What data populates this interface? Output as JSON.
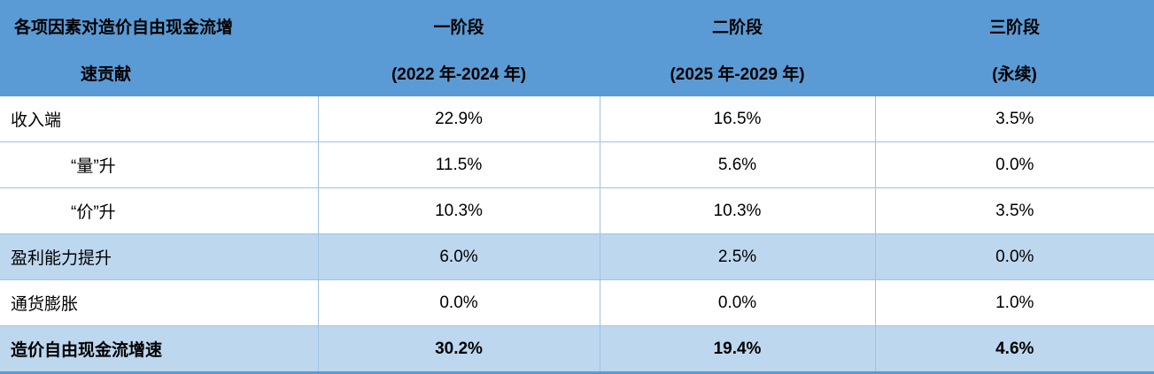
{
  "header": {
    "row1": [
      "各项因素对造价自由现金流增",
      "一阶段",
      "二阶段",
      "三阶段"
    ],
    "row2": [
      "速贡献",
      "(2022 年-2024 年)",
      "(2025 年-2029 年)",
      "(永续)"
    ]
  },
  "rows": [
    {
      "label": "收入端",
      "values": [
        "22.9%",
        "16.5%",
        "3.5%"
      ]
    },
    {
      "label": "“量”升",
      "values": [
        "11.5%",
        "5.6%",
        "0.0%"
      ]
    },
    {
      "label": "“价”升",
      "values": [
        "10.3%",
        "10.3%",
        "3.5%"
      ]
    },
    {
      "label": "盈利能力提升",
      "values": [
        "6.0%",
        "2.5%",
        "0.0%"
      ]
    },
    {
      "label": "通货膨胀",
      "values": [
        "0.0%",
        "0.0%",
        "1.0%"
      ]
    },
    {
      "label": "造价自由现金流增速",
      "values": [
        "30.2%",
        "19.4%",
        "4.6%"
      ]
    }
  ]
}
